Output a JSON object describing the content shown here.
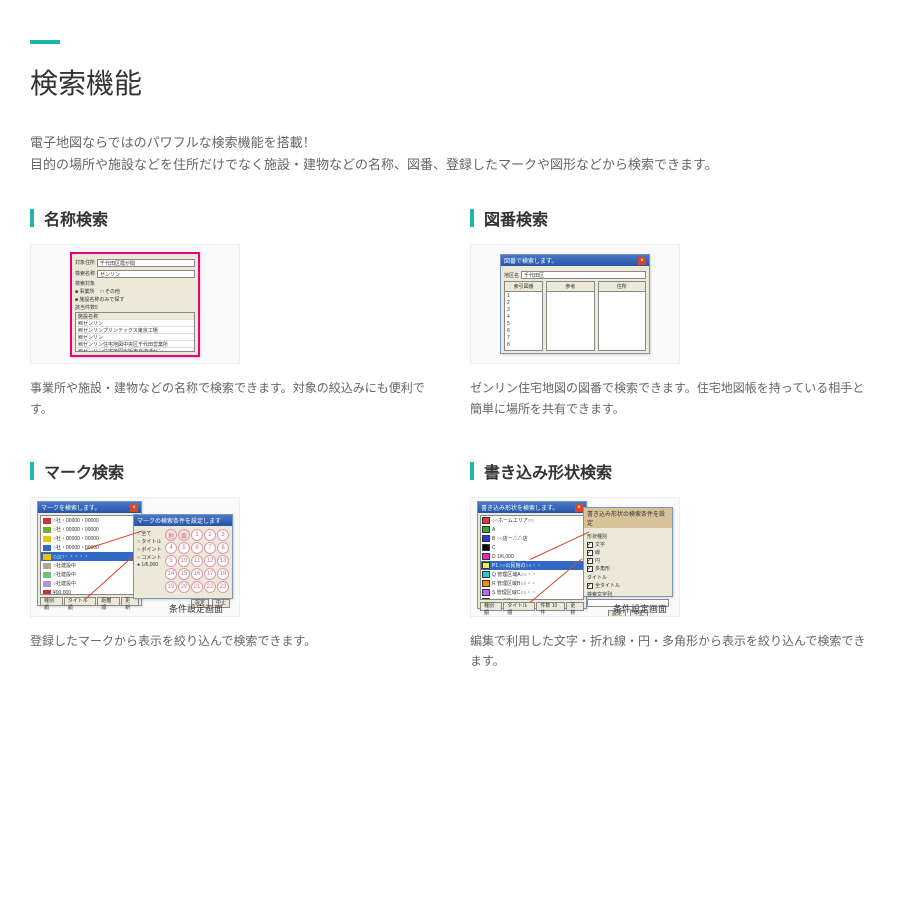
{
  "accent_color": "#1fb5a8",
  "page_title": "検索機能",
  "intro_line1": "電子地図ならではのパワフルな検索機能を搭載！",
  "intro_line2": "目的の場所や施設などを住所だけでなく施設・建物などの名称、図番、登録したマークや図形などから検索できます。",
  "features": [
    {
      "title": "名称検索",
      "desc": "事業所や施設・建物などの名称で検索できます。対象の絞込みにも便利です。",
      "thumb": {
        "type": "name-search",
        "fields": {
          "label1": "対象住所",
          "value1": "千代田区霞が関",
          "label2": "検索名称",
          "value2": "ゼンリン",
          "label3": "検索対象",
          "chk1": "■ 事業所",
          "chk2": "□ その他",
          "chk3": "■ 施設名称のみで探す",
          "count": "該当件数5"
        },
        "list_header": "施設名称",
        "list_rows": [
          "㈱ゼンリン",
          "㈱ゼンリンプリンテックス東京工場",
          "㈱ゼンリン",
          "㈱ゼンリン住宅地図中央区千代田営業所",
          "㈱ゼンリン住宅地図出版東京流通セン"
        ]
      }
    },
    {
      "title": "図番検索",
      "desc": "ゼンリン住宅地図の図番で検索できます。住宅地図帳を持っている相手と簡単に場所を共有できます。",
      "thumb": {
        "type": "zuban-search",
        "win_title": "図番で検索します。",
        "field_label": "地区名",
        "field_value": "千代田区",
        "col_headers": [
          "索引図番",
          "参考",
          "住所"
        ],
        "col0_rows": [
          "1",
          "2",
          "3",
          "4",
          "5",
          "6",
          "7",
          "8"
        ]
      }
    },
    {
      "title": "マーク検索",
      "desc": "登録したマークから表示を絞り込んで検索できます。",
      "thumb": {
        "type": "mark-search",
        "win1_title": "マークを検索します。",
        "mark_rows": [
          {
            "color": "#cc3333",
            "label": "○社・00000・00000"
          },
          {
            "color": "#77aa33",
            "label": "○社・00000・00000"
          },
          {
            "color": "#e7c500",
            "label": "○社・00000・00000"
          },
          {
            "color": "#3366cc",
            "label": "○社・00000・00000"
          },
          {
            "color": "#e7c500",
            "label": "◇△□・・・・・",
            "selected": true
          },
          {
            "color": "#aaaa88",
            "label": "○社建設中"
          },
          {
            "color": "#77bb77",
            "label": "○社建設中"
          },
          {
            "color": "#aa99cc",
            "label": "○社建設中"
          },
          {
            "color": "#cc3333",
            "label": "¥00,000"
          },
          {
            "color": "#e7c500",
            "label": "¥0,000"
          }
        ],
        "bottom_tabs": [
          "種別順",
          "タイトル順",
          "距離順",
          "更新"
        ],
        "win2_title": "マークの検索条件を設定します",
        "radio_rows": [
          "○ 全て",
          "○ タイトル",
          "○ ポイント",
          "○ コメント",
          "● 1/6,000"
        ],
        "num_cells": [
          "地",
          "番",
          "1",
          "2",
          "3",
          "4",
          "5",
          "6",
          "7",
          "8",
          "9",
          "10",
          "11",
          "12",
          "13",
          "14",
          "15",
          "16",
          "17",
          "18",
          "19",
          "20",
          "21",
          "22",
          "23"
        ],
        "win2_buttons": [
          "設定",
          "中止"
        ],
        "sublabel": "条件設定画面"
      }
    },
    {
      "title": "書き込み形状検索",
      "desc": "編集で利用した文字・折れ線・円・多角形から表示を絞り込んで検索できます。",
      "thumb": {
        "type": "shape-search",
        "win1_title": "書き込み形状を検索します。",
        "color_rows": [
          {
            "color": "#e33",
            "label": "○○ホームエリア○○"
          },
          {
            "color": "#3a3",
            "label": "A"
          },
          {
            "color": "#33e",
            "label": "B ○○店ー△△店"
          },
          {
            "color": "#000",
            "label": "C"
          },
          {
            "color": "#f2c",
            "label": "D 1/6,000"
          },
          {
            "color": "#ee4",
            "label": "P1 ○○公民館の○○・・",
            "selected": true
          },
          {
            "color": "#2cc",
            "label": "Q 管理区域A○○・・"
          },
          {
            "color": "#f80",
            "label": "R 管理区域B○○・・"
          },
          {
            "color": "#b6f",
            "label": "S 管理区域C○○・・"
          },
          {
            "color": "#7cf",
            "label": "T 管理区域D○○・・"
          }
        ],
        "bottom_tabs": [
          "種別順",
          "タイトル順",
          "件数 10件",
          "更新"
        ],
        "win2_title": "書き込み形状の検索条件を設定",
        "group1_title": "形状種別",
        "group1_checks": [
          {
            "label": "文字",
            "checked": true
          },
          {
            "label": "線",
            "checked": true
          },
          {
            "label": "円",
            "checked": true
          },
          {
            "label": "多角形",
            "checked": true
          }
        ],
        "group2_title": "タイトル",
        "group2_checks": [
          {
            "label": "全タイトル",
            "checked": true
          }
        ],
        "group3_title": "検索文字列",
        "win2_buttons": [
          "設定",
          "中止"
        ],
        "sublabel": "条件設定画面"
      }
    }
  ]
}
